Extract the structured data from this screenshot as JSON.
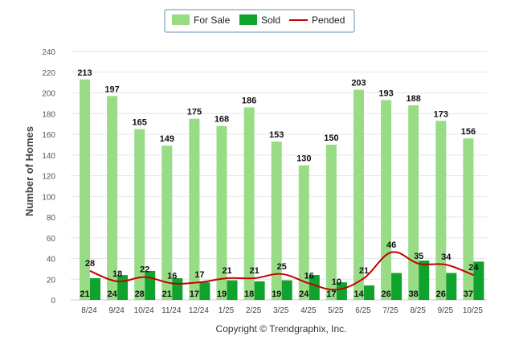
{
  "chart_data": {
    "type": "bar",
    "title": "",
    "xlabel": "",
    "ylabel": "Number of Homes",
    "ylim": [
      0,
      240
    ],
    "yticks": [
      0,
      20,
      40,
      60,
      80,
      100,
      120,
      140,
      160,
      180,
      200,
      220,
      240
    ],
    "grid": true,
    "legend_position": "top-center",
    "categories": [
      "8/24",
      "9/24",
      "10/24",
      "11/24",
      "12/24",
      "1/25",
      "2/25",
      "3/25",
      "4/25",
      "5/25",
      "6/25",
      "7/25",
      "8/25",
      "9/25",
      "10/25"
    ],
    "series": [
      {
        "name": "For Sale",
        "type": "bar",
        "color": "#98dc86",
        "values": [
          213,
          197,
          165,
          149,
          175,
          168,
          186,
          153,
          130,
          150,
          203,
          193,
          188,
          173,
          156
        ]
      },
      {
        "name": "Sold",
        "type": "bar",
        "color": "#0fa22c",
        "values": [
          21,
          24,
          28,
          21,
          17,
          19,
          18,
          19,
          24,
          17,
          14,
          26,
          38,
          26,
          37
        ]
      },
      {
        "name": "Pended",
        "type": "line",
        "color": "#c40000",
        "values": [
          28,
          18,
          22,
          16,
          17,
          21,
          21,
          25,
          16,
          10,
          21,
          46,
          35,
          34,
          24
        ]
      }
    ],
    "footer": "Copyright © Trendgraphix, Inc."
  }
}
